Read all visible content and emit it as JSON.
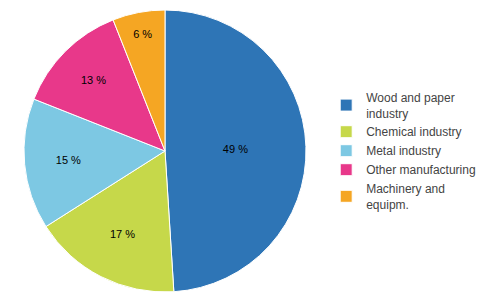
{
  "chart_data": {
    "type": "pie",
    "categories": [
      "Wood and paper\nindustry",
      "Chemical industry",
      "Metal industry",
      "Other manufacturing",
      "Machinery and\nequipm."
    ],
    "values": [
      49,
      17,
      15,
      13,
      6
    ],
    "value_labels": [
      "49 %",
      "17 %",
      "15 %",
      "13 %",
      "6 %"
    ],
    "colors": [
      "#2E75B6",
      "#C6D84A",
      "#7DC8E3",
      "#E8388A",
      "#F5A623"
    ],
    "data_labels": true,
    "legend": "right"
  }
}
